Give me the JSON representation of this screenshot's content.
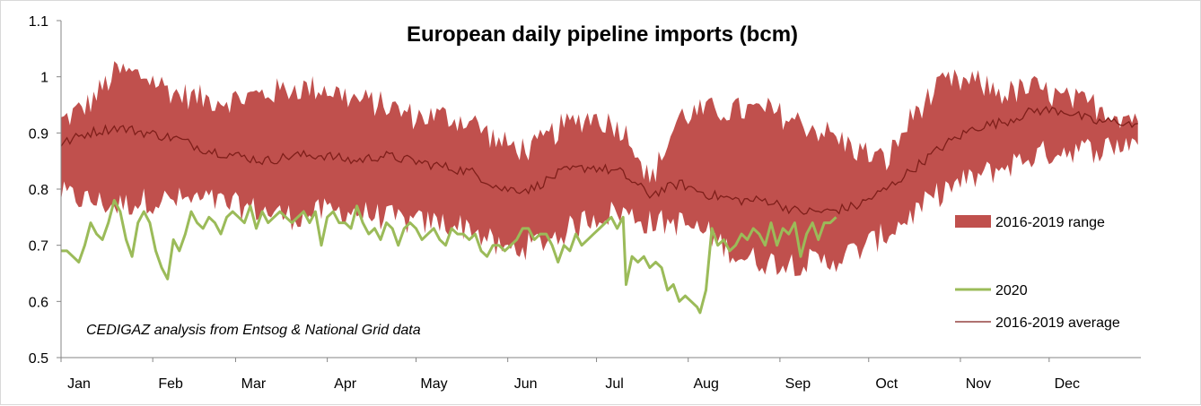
{
  "chart_data": {
    "type": "area",
    "title": "European daily pipeline imports (bcm)",
    "xlabel": "",
    "ylabel": "",
    "ylim": [
      0.5,
      1.1
    ],
    "yticks": [
      "0.5",
      "0.6",
      "0.7",
      "0.8",
      "0.9",
      "1",
      "1.1"
    ],
    "categories": [
      "Jan",
      "Feb",
      "Mar",
      "Apr",
      "May",
      "Jun",
      "Jul",
      "Aug",
      "Sep",
      "Oct",
      "Nov",
      "Dec"
    ],
    "x_unit": "day of year (1-365)",
    "legend": {
      "range": "2016-2019 range",
      "current": "2020",
      "average": "2016-2019 average",
      "placement": "right"
    },
    "note": "CEDIGAZ  analysis from Entsog & National Grid data",
    "colors": {
      "range": "#c0504d",
      "current": "#9bbb59",
      "average": "#7f1f1a",
      "axis": "#868686"
    },
    "series": [
      {
        "name": "2016-2019 range max",
        "points": [
          [
            1,
            0.92
          ],
          [
            10,
            0.95
          ],
          [
            20,
            1.01
          ],
          [
            30,
            1.0
          ],
          [
            40,
            0.97
          ],
          [
            50,
            0.96
          ],
          [
            60,
            0.96
          ],
          [
            70,
            0.97
          ],
          [
            80,
            0.98
          ],
          [
            90,
            0.98
          ],
          [
            100,
            0.96
          ],
          [
            110,
            0.95
          ],
          [
            120,
            0.93
          ],
          [
            130,
            0.93
          ],
          [
            140,
            0.92
          ],
          [
            150,
            0.88
          ],
          [
            160,
            0.87
          ],
          [
            170,
            0.91
          ],
          [
            180,
            0.93
          ],
          [
            190,
            0.91
          ],
          [
            195,
            0.88
          ],
          [
            200,
            0.81
          ],
          [
            210,
            0.93
          ],
          [
            220,
            0.94
          ],
          [
            230,
            0.94
          ],
          [
            240,
            0.94
          ],
          [
            250,
            0.92
          ],
          [
            260,
            0.9
          ],
          [
            270,
            0.87
          ],
          [
            280,
            0.85
          ],
          [
            290,
            0.94
          ],
          [
            300,
            0.99
          ],
          [
            310,
            0.99
          ],
          [
            320,
            0.97
          ],
          [
            330,
            0.98
          ],
          [
            340,
            0.96
          ],
          [
            350,
            0.95
          ],
          [
            360,
            0.93
          ],
          [
            365,
            0.93
          ]
        ]
      },
      {
        "name": "2016-2019 range min",
        "points": [
          [
            1,
            0.79
          ],
          [
            10,
            0.78
          ],
          [
            20,
            0.77
          ],
          [
            30,
            0.78
          ],
          [
            40,
            0.78
          ],
          [
            50,
            0.78
          ],
          [
            60,
            0.77
          ],
          [
            70,
            0.76
          ],
          [
            80,
            0.75
          ],
          [
            90,
            0.76
          ],
          [
            100,
            0.76
          ],
          [
            110,
            0.75
          ],
          [
            120,
            0.74
          ],
          [
            130,
            0.74
          ],
          [
            140,
            0.73
          ],
          [
            150,
            0.69
          ],
          [
            160,
            0.7
          ],
          [
            170,
            0.72
          ],
          [
            180,
            0.75
          ],
          [
            190,
            0.76
          ],
          [
            200,
            0.74
          ],
          [
            210,
            0.74
          ],
          [
            220,
            0.72
          ],
          [
            230,
            0.68
          ],
          [
            240,
            0.67
          ],
          [
            250,
            0.67
          ],
          [
            260,
            0.67
          ],
          [
            270,
            0.69
          ],
          [
            280,
            0.72
          ],
          [
            290,
            0.76
          ],
          [
            300,
            0.8
          ],
          [
            310,
            0.82
          ],
          [
            320,
            0.84
          ],
          [
            330,
            0.86
          ],
          [
            340,
            0.87
          ],
          [
            350,
            0.87
          ],
          [
            360,
            0.88
          ],
          [
            365,
            0.89
          ]
        ]
      },
      {
        "name": "2016-2019 average",
        "points": [
          [
            1,
            0.88
          ],
          [
            10,
            0.9
          ],
          [
            20,
            0.91
          ],
          [
            30,
            0.9
          ],
          [
            40,
            0.89
          ],
          [
            50,
            0.87
          ],
          [
            60,
            0.86
          ],
          [
            70,
            0.85
          ],
          [
            80,
            0.86
          ],
          [
            90,
            0.86
          ],
          [
            100,
            0.85
          ],
          [
            110,
            0.86
          ],
          [
            120,
            0.85
          ],
          [
            130,
            0.84
          ],
          [
            140,
            0.83
          ],
          [
            150,
            0.8
          ],
          [
            160,
            0.8
          ],
          [
            170,
            0.83
          ],
          [
            180,
            0.84
          ],
          [
            190,
            0.83
          ],
          [
            200,
            0.79
          ],
          [
            210,
            0.81
          ],
          [
            220,
            0.79
          ],
          [
            230,
            0.78
          ],
          [
            240,
            0.78
          ],
          [
            250,
            0.76
          ],
          [
            260,
            0.76
          ],
          [
            270,
            0.77
          ],
          [
            280,
            0.8
          ],
          [
            290,
            0.84
          ],
          [
            300,
            0.88
          ],
          [
            310,
            0.91
          ],
          [
            320,
            0.92
          ],
          [
            330,
            0.94
          ],
          [
            340,
            0.94
          ],
          [
            350,
            0.92
          ],
          [
            360,
            0.92
          ],
          [
            365,
            0.91
          ]
        ]
      },
      {
        "name": "2020",
        "points": [
          [
            1,
            0.69
          ],
          [
            3,
            0.69
          ],
          [
            5,
            0.68
          ],
          [
            7,
            0.67
          ],
          [
            9,
            0.7
          ],
          [
            11,
            0.74
          ],
          [
            13,
            0.72
          ],
          [
            15,
            0.71
          ],
          [
            17,
            0.74
          ],
          [
            19,
            0.78
          ],
          [
            21,
            0.76
          ],
          [
            23,
            0.71
          ],
          [
            25,
            0.68
          ],
          [
            27,
            0.74
          ],
          [
            29,
            0.76
          ],
          [
            31,
            0.74
          ],
          [
            33,
            0.69
          ],
          [
            35,
            0.66
          ],
          [
            37,
            0.64
          ],
          [
            39,
            0.71
          ],
          [
            41,
            0.69
          ],
          [
            43,
            0.72
          ],
          [
            45,
            0.76
          ],
          [
            47,
            0.74
          ],
          [
            49,
            0.73
          ],
          [
            51,
            0.75
          ],
          [
            53,
            0.74
          ],
          [
            55,
            0.72
          ],
          [
            57,
            0.75
          ],
          [
            59,
            0.76
          ],
          [
            61,
            0.75
          ],
          [
            63,
            0.74
          ],
          [
            65,
            0.77
          ],
          [
            67,
            0.73
          ],
          [
            69,
            0.76
          ],
          [
            71,
            0.74
          ],
          [
            73,
            0.75
          ],
          [
            75,
            0.76
          ],
          [
            77,
            0.75
          ],
          [
            79,
            0.74
          ],
          [
            81,
            0.75
          ],
          [
            83,
            0.76
          ],
          [
            85,
            0.74
          ],
          [
            87,
            0.76
          ],
          [
            89,
            0.7
          ],
          [
            91,
            0.75
          ],
          [
            93,
            0.76
          ],
          [
            95,
            0.74
          ],
          [
            97,
            0.74
          ],
          [
            99,
            0.73
          ],
          [
            101,
            0.77
          ],
          [
            103,
            0.74
          ],
          [
            105,
            0.72
          ],
          [
            107,
            0.73
          ],
          [
            109,
            0.71
          ],
          [
            111,
            0.74
          ],
          [
            113,
            0.73
          ],
          [
            115,
            0.7
          ],
          [
            117,
            0.73
          ],
          [
            119,
            0.74
          ],
          [
            121,
            0.73
          ],
          [
            123,
            0.71
          ],
          [
            125,
            0.72
          ],
          [
            127,
            0.73
          ],
          [
            129,
            0.71
          ],
          [
            131,
            0.7
          ],
          [
            133,
            0.73
          ],
          [
            135,
            0.72
          ],
          [
            137,
            0.72
          ],
          [
            139,
            0.71
          ],
          [
            141,
            0.72
          ],
          [
            143,
            0.69
          ],
          [
            145,
            0.68
          ],
          [
            147,
            0.7
          ],
          [
            149,
            0.7
          ],
          [
            151,
            0.69
          ],
          [
            153,
            0.7
          ],
          [
            155,
            0.71
          ],
          [
            157,
            0.73
          ],
          [
            159,
            0.73
          ],
          [
            161,
            0.71
          ],
          [
            163,
            0.72
          ],
          [
            165,
            0.72
          ],
          [
            167,
            0.7
          ],
          [
            169,
            0.67
          ],
          [
            171,
            0.7
          ],
          [
            173,
            0.69
          ],
          [
            175,
            0.72
          ],
          [
            177,
            0.7
          ],
          [
            179,
            0.71
          ],
          [
            181,
            0.72
          ],
          [
            183,
            0.73
          ],
          [
            185,
            0.74
          ],
          [
            187,
            0.75
          ],
          [
            189,
            0.73
          ],
          [
            191,
            0.75
          ],
          [
            192,
            0.63
          ],
          [
            194,
            0.68
          ],
          [
            196,
            0.67
          ],
          [
            198,
            0.68
          ],
          [
            200,
            0.66
          ],
          [
            202,
            0.67
          ],
          [
            204,
            0.66
          ],
          [
            206,
            0.62
          ],
          [
            208,
            0.63
          ],
          [
            210,
            0.6
          ],
          [
            212,
            0.61
          ],
          [
            214,
            0.6
          ],
          [
            216,
            0.59
          ],
          [
            217,
            0.58
          ],
          [
            219,
            0.62
          ],
          [
            221,
            0.73
          ],
          [
            223,
            0.7
          ],
          [
            225,
            0.71
          ],
          [
            227,
            0.69
          ],
          [
            229,
            0.7
          ],
          [
            231,
            0.72
          ],
          [
            233,
            0.71
          ],
          [
            235,
            0.73
          ],
          [
            237,
            0.72
          ],
          [
            239,
            0.7
          ],
          [
            241,
            0.74
          ],
          [
            243,
            0.7
          ],
          [
            245,
            0.73
          ],
          [
            247,
            0.72
          ],
          [
            249,
            0.74
          ],
          [
            251,
            0.68
          ],
          [
            253,
            0.72
          ],
          [
            255,
            0.74
          ],
          [
            257,
            0.71
          ],
          [
            259,
            0.74
          ],
          [
            261,
            0.74
          ],
          [
            263,
            0.75
          ]
        ]
      }
    ]
  }
}
